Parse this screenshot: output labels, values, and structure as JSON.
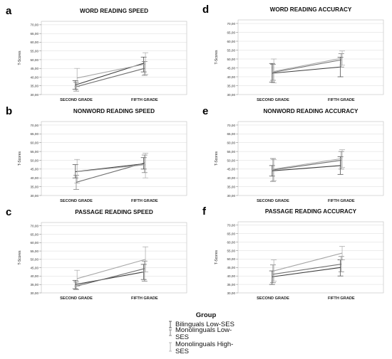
{
  "legend": {
    "title": "Group",
    "entries": [
      {
        "lines": [
          "Bilinguals Low-SES"
        ],
        "color": "#3d3d3d"
      },
      {
        "lines": [
          "Monolinguals Low-",
          "SES"
        ],
        "color": "#6e6e6e"
      },
      {
        "lines": [
          "Monolinguals High-",
          "SES"
        ],
        "color": "#a6a6a6"
      }
    ]
  },
  "chart_data": [
    {
      "panel": "a",
      "type": "line",
      "title": "WORD READING SPEED",
      "ylabel": "T-Scores",
      "categories": [
        "SECOND GRADE",
        "FIFTH GRADE"
      ],
      "yticks": [
        "30,00",
        "35,00",
        "40,00",
        "45,00",
        "50,00",
        "55,00",
        "60,00",
        "65,00",
        "70,00"
      ],
      "ylim": [
        30,
        72
      ],
      "grid": "horizontal",
      "series": [
        {
          "name": "Bilinguals Low-SES",
          "values": [
            35.5,
            48.0
          ],
          "errors": [
            [
              33.0,
              38.0
            ],
            [
              43.0,
              51.5
            ]
          ]
        },
        {
          "name": "Monolinguals Low-SES",
          "values": [
            34.5,
            45.0
          ],
          "errors": [
            [
              32.0,
              37.0
            ],
            [
              41.0,
              49.0
            ]
          ]
        },
        {
          "name": "Monolinguals High-SES",
          "values": [
            39.5,
            47.5
          ],
          "errors": [
            [
              34.5,
              45.0
            ],
            [
              41.5,
              54.0
            ]
          ]
        }
      ]
    },
    {
      "panel": "d",
      "type": "line",
      "title": "WORD READING ACCURACY",
      "ylabel": "T-Scores",
      "categories": [
        "SECOND GRADE",
        "FIFTH GRADE"
      ],
      "yticks": [
        "30,00",
        "35,00",
        "40,00",
        "45,00",
        "50,00",
        "55,00",
        "60,00",
        "65,00",
        "70,00"
      ],
      "ylim": [
        30,
        72
      ],
      "grid": "horizontal",
      "series": [
        {
          "name": "Bilinguals Low-SES",
          "values": [
            42.0,
            45.5
          ],
          "errors": [
            [
              37.0,
              47.5
            ],
            [
              40.0,
              51.0
            ]
          ]
        },
        {
          "name": "Monolinguals Low-SES",
          "values": [
            42.5,
            49.5
          ],
          "errors": [
            [
              38.0,
              47.0
            ],
            [
              45.5,
              53.0
            ]
          ]
        },
        {
          "name": "Monolinguals High-SES",
          "values": [
            43.0,
            50.5
          ],
          "errors": [
            [
              36.5,
              50.0
            ],
            [
              46.5,
              54.5
            ]
          ]
        }
      ]
    },
    {
      "panel": "b",
      "type": "line",
      "title": "NONWORD READING SPEED",
      "ylabel": "T-Scores",
      "categories": [
        "SECOND GRADE",
        "FIFTH GRADE"
      ],
      "yticks": [
        "30,00",
        "35,00",
        "40,00",
        "45,00",
        "50,00",
        "55,00",
        "60,00",
        "65,00",
        "70,00"
      ],
      "ylim": [
        30,
        72
      ],
      "grid": "horizontal",
      "series": [
        {
          "name": "Bilinguals Low-SES",
          "values": [
            43.5,
            48.0
          ],
          "errors": [
            [
              40.0,
              47.5
            ],
            [
              45.0,
              51.5
            ]
          ]
        },
        {
          "name": "Monolinguals Low-SES",
          "values": [
            37.5,
            48.5
          ],
          "errors": [
            [
              33.5,
              41.5
            ],
            [
              43.0,
              53.0
            ]
          ]
        },
        {
          "name": "Monolinguals High-SES",
          "values": [
            43.5,
            47.5
          ],
          "errors": [
            [
              37.0,
              50.5
            ],
            [
              40.0,
              54.0
            ]
          ]
        }
      ]
    },
    {
      "panel": "e",
      "type": "line",
      "title": "NONWORD READING ACCURACY",
      "ylabel": "T-Scores",
      "categories": [
        "SECOND GRADE",
        "FIFTH GRADE"
      ],
      "yticks": [
        "30,00",
        "35,00",
        "40,00",
        "45,00",
        "50,00",
        "55,00",
        "60,00",
        "65,00",
        "70,00"
      ],
      "ylim": [
        30,
        72
      ],
      "grid": "horizontal",
      "series": [
        {
          "name": "Bilinguals Low-SES",
          "values": [
            44.0,
            47.0
          ],
          "errors": [
            [
              41.0,
              47.0
            ],
            [
              42.0,
              52.0
            ]
          ]
        },
        {
          "name": "Monolinguals Low-SES",
          "values": [
            44.5,
            50.0
          ],
          "errors": [
            [
              38.0,
              51.0
            ],
            [
              45.0,
              55.0
            ]
          ]
        },
        {
          "name": "Monolinguals High-SES",
          "values": [
            45.0,
            51.0
          ],
          "errors": [
            [
              38.5,
              50.5
            ],
            [
              46.0,
              56.0
            ]
          ]
        }
      ]
    },
    {
      "panel": "c",
      "type": "line",
      "title": "PASSAGE READING SPEED",
      "ylabel": "T-Scores",
      "categories": [
        "SECOND GRADE",
        "FIFTH GRADE"
      ],
      "yticks": [
        "30,00",
        "35,00",
        "40,00",
        "45,00",
        "50,00",
        "55,00",
        "60,00",
        "65,00",
        "70,00"
      ],
      "ylim": [
        30,
        72
      ],
      "grid": "horizontal",
      "series": [
        {
          "name": "Bilinguals Low-SES",
          "values": [
            35.0,
            42.5
          ],
          "errors": [
            [
              32.5,
              37.5
            ],
            [
              38.0,
              47.0
            ]
          ]
        },
        {
          "name": "Monolinguals Low-SES",
          "values": [
            34.0,
            44.5
          ],
          "errors": [
            [
              32.0,
              36.5
            ],
            [
              37.0,
              49.0
            ]
          ]
        },
        {
          "name": "Monolinguals High-SES",
          "values": [
            38.5,
            50.0
          ],
          "errors": [
            [
              34.0,
              43.5
            ],
            [
              42.5,
              57.5
            ]
          ]
        }
      ]
    },
    {
      "panel": "f",
      "type": "line",
      "title": "PASSAGE READING ACCURACY",
      "ylabel": "T-Scores",
      "categories": [
        "SECOND GRADE",
        "FIFTH GRADE"
      ],
      "yticks": [
        "30,00",
        "35,00",
        "40,00",
        "45,00",
        "50,00",
        "55,00",
        "60,00",
        "65,00",
        "70,00"
      ],
      "ylim": [
        30,
        72
      ],
      "grid": "horizontal",
      "series": [
        {
          "name": "Bilinguals Low-SES",
          "values": [
            39.5,
            45.0
          ],
          "errors": [
            [
              35.0,
              43.0
            ],
            [
              40.0,
              49.5
            ]
          ]
        },
        {
          "name": "Monolinguals Low-SES",
          "values": [
            41.0,
            47.0
          ],
          "errors": [
            [
              36.0,
              46.5
            ],
            [
              42.5,
              51.5
            ]
          ]
        },
        {
          "name": "Monolinguals High-SES",
          "values": [
            43.0,
            53.5
          ],
          "errors": [
            [
              37.0,
              49.5
            ],
            [
              49.5,
              57.5
            ]
          ]
        }
      ]
    }
  ]
}
